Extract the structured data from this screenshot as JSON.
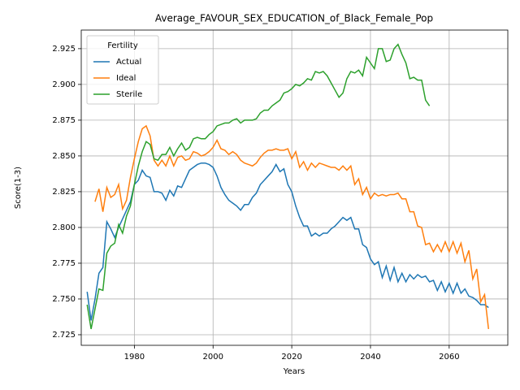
{
  "chart_data": {
    "type": "line",
    "title": "Average_FAVOUR_SEX_EDUCATION_of_Black_Female_Pop",
    "xlabel": "Years",
    "ylabel": "Score(1-3)",
    "legend_title": "Fertility",
    "legend": "upper left",
    "grid": true,
    "xlim": [
      1966.5,
      2074.9
    ],
    "ylim": [
      2.7176,
      2.938
    ],
    "xticks": [
      1980,
      2000,
      2020,
      2040,
      2060
    ],
    "yticks": [
      2.725,
      {
        "value": 2.75,
        "label": "2.750"
      },
      2.775,
      {
        "value": 2.8,
        "label": "2.800"
      },
      2.825,
      {
        "value": 2.85,
        "label": "2.850"
      },
      2.875,
      {
        "value": 2.9,
        "label": "2.900"
      },
      2.925
    ],
    "x": [
      1968,
      1969,
      1970,
      1971,
      1972,
      1973,
      1974,
      1975,
      1976,
      1977,
      1978,
      1979,
      1980,
      1981,
      1982,
      1983,
      1984,
      1985,
      1986,
      1987,
      1988,
      1989,
      1990,
      1991,
      1992,
      1993,
      1994,
      1995,
      1996,
      1997,
      1998,
      1999,
      2000,
      2001,
      2002,
      2003,
      2004,
      2005,
      2006,
      2007,
      2008,
      2009,
      2010,
      2011,
      2012,
      2013,
      2014,
      2015,
      2016,
      2017,
      2018,
      2019,
      2020,
      2021,
      2022,
      2023,
      2024,
      2025,
      2026,
      2027,
      2028,
      2029,
      2030,
      2031,
      2032,
      2033,
      2034,
      2035,
      2036,
      2037,
      2038,
      2039,
      2040,
      2041,
      2042,
      2043,
      2044,
      2045,
      2046,
      2047,
      2048,
      2049,
      2050,
      2051,
      2052,
      2053,
      2054,
      2055,
      2056,
      2057,
      2058,
      2059,
      2060,
      2061,
      2062,
      2063,
      2064,
      2065,
      2066,
      2067,
      2068,
      2069,
      2070
    ],
    "series": [
      {
        "name": "Actual",
        "color": "#1f77b4",
        "values": [
          2.755,
          2.735,
          2.75,
          2.768,
          2.772,
          2.804,
          2.799,
          2.793,
          2.8,
          2.806,
          2.812,
          2.818,
          2.83,
          2.833,
          2.84,
          2.836,
          2.835,
          2.825,
          2.825,
          2.824,
          2.819,
          2.826,
          2.822,
          2.829,
          2.828,
          2.834,
          2.84,
          2.842,
          2.844,
          2.845,
          2.845,
          2.844,
          2.842,
          2.836,
          2.828,
          2.823,
          2.819,
          2.817,
          2.815,
          2.812,
          2.816,
          2.816,
          2.821,
          2.824,
          2.83,
          2.833,
          2.836,
          2.839,
          2.844,
          2.839,
          2.841,
          2.83,
          2.825,
          2.815,
          2.807,
          2.801,
          2.801,
          2.794,
          2.796,
          2.794,
          2.796,
          2.796,
          2.799,
          2.801,
          2.804,
          2.807,
          2.805,
          2.807,
          2.799,
          2.799,
          2.788,
          2.786,
          2.778,
          2.774,
          2.776,
          2.765,
          2.773,
          2.763,
          2.772,
          2.762,
          2.768,
          2.762,
          2.767,
          2.764,
          2.767,
          2.765,
          2.766,
          2.762,
          2.763,
          2.756,
          2.762,
          2.755,
          2.761,
          2.754,
          2.761,
          2.754,
          2.757,
          2.752,
          2.751,
          2.749,
          2.746,
          2.746,
          2.744
        ]
      },
      {
        "name": "Ideal",
        "color": "#ff7f0e",
        "values": [
          null,
          null,
          2.818,
          2.827,
          2.811,
          2.828,
          2.821,
          2.823,
          2.83,
          2.813,
          2.819,
          2.835,
          2.848,
          2.86,
          2.869,
          2.871,
          2.864,
          2.847,
          2.843,
          2.847,
          2.843,
          2.85,
          2.843,
          2.849,
          2.85,
          2.847,
          2.848,
          2.853,
          2.852,
          2.85,
          2.851,
          2.853,
          2.856,
          2.861,
          2.855,
          2.854,
          2.851,
          2.853,
          2.851,
          2.847,
          2.845,
          2.844,
          2.843,
          2.845,
          2.849,
          2.852,
          2.854,
          2.854,
          2.855,
          2.854,
          2.854,
          2.855,
          2.848,
          2.853,
          2.842,
          2.846,
          2.84,
          2.845,
          2.842,
          2.845,
          2.844,
          2.843,
          2.842,
          2.842,
          2.84,
          2.843,
          2.84,
          2.843,
          2.83,
          2.834,
          2.823,
          2.828,
          2.82,
          2.824,
          2.822,
          2.823,
          2.822,
          2.823,
          2.823,
          2.824,
          2.82,
          2.82,
          2.811,
          2.811,
          2.801,
          2.8,
          2.788,
          2.789,
          2.783,
          2.788,
          2.783,
          2.79,
          2.783,
          2.79,
          2.782,
          2.789,
          2.776,
          2.784,
          2.764,
          2.771,
          2.748,
          2.753,
          2.729
        ]
      },
      {
        "name": "Sterile",
        "color": "#2ca02c",
        "values": [
          2.746,
          2.729,
          2.743,
          2.757,
          2.756,
          2.782,
          2.787,
          2.789,
          2.802,
          2.796,
          2.808,
          2.815,
          2.83,
          2.843,
          2.853,
          2.86,
          2.858,
          2.848,
          2.847,
          2.851,
          2.851,
          2.856,
          2.85,
          2.855,
          2.859,
          2.854,
          2.856,
          2.862,
          2.863,
          2.862,
          2.862,
          2.865,
          2.867,
          2.871,
          2.872,
          2.873,
          2.873,
          2.875,
          2.876,
          2.873,
          2.875,
          2.875,
          2.875,
          2.876,
          2.88,
          2.882,
          2.882,
          2.885,
          2.887,
          2.889,
          2.894,
          2.895,
          2.897,
          2.9,
          2.899,
          2.901,
          2.904,
          2.903,
          2.909,
          2.908,
          2.909,
          2.906,
          2.901,
          2.896,
          2.891,
          2.894,
          2.904,
          2.909,
          2.908,
          2.91,
          2.906,
          2.919,
          2.915,
          2.911,
          2.925,
          2.925,
          2.916,
          2.917,
          2.925,
          2.928,
          2.921,
          2.915,
          2.904,
          2.905,
          2.903,
          2.903,
          2.889,
          2.885,
          null,
          null,
          null,
          null,
          null,
          null,
          null,
          null,
          null,
          null,
          null,
          null,
          null,
          null,
          null
        ]
      }
    ]
  }
}
